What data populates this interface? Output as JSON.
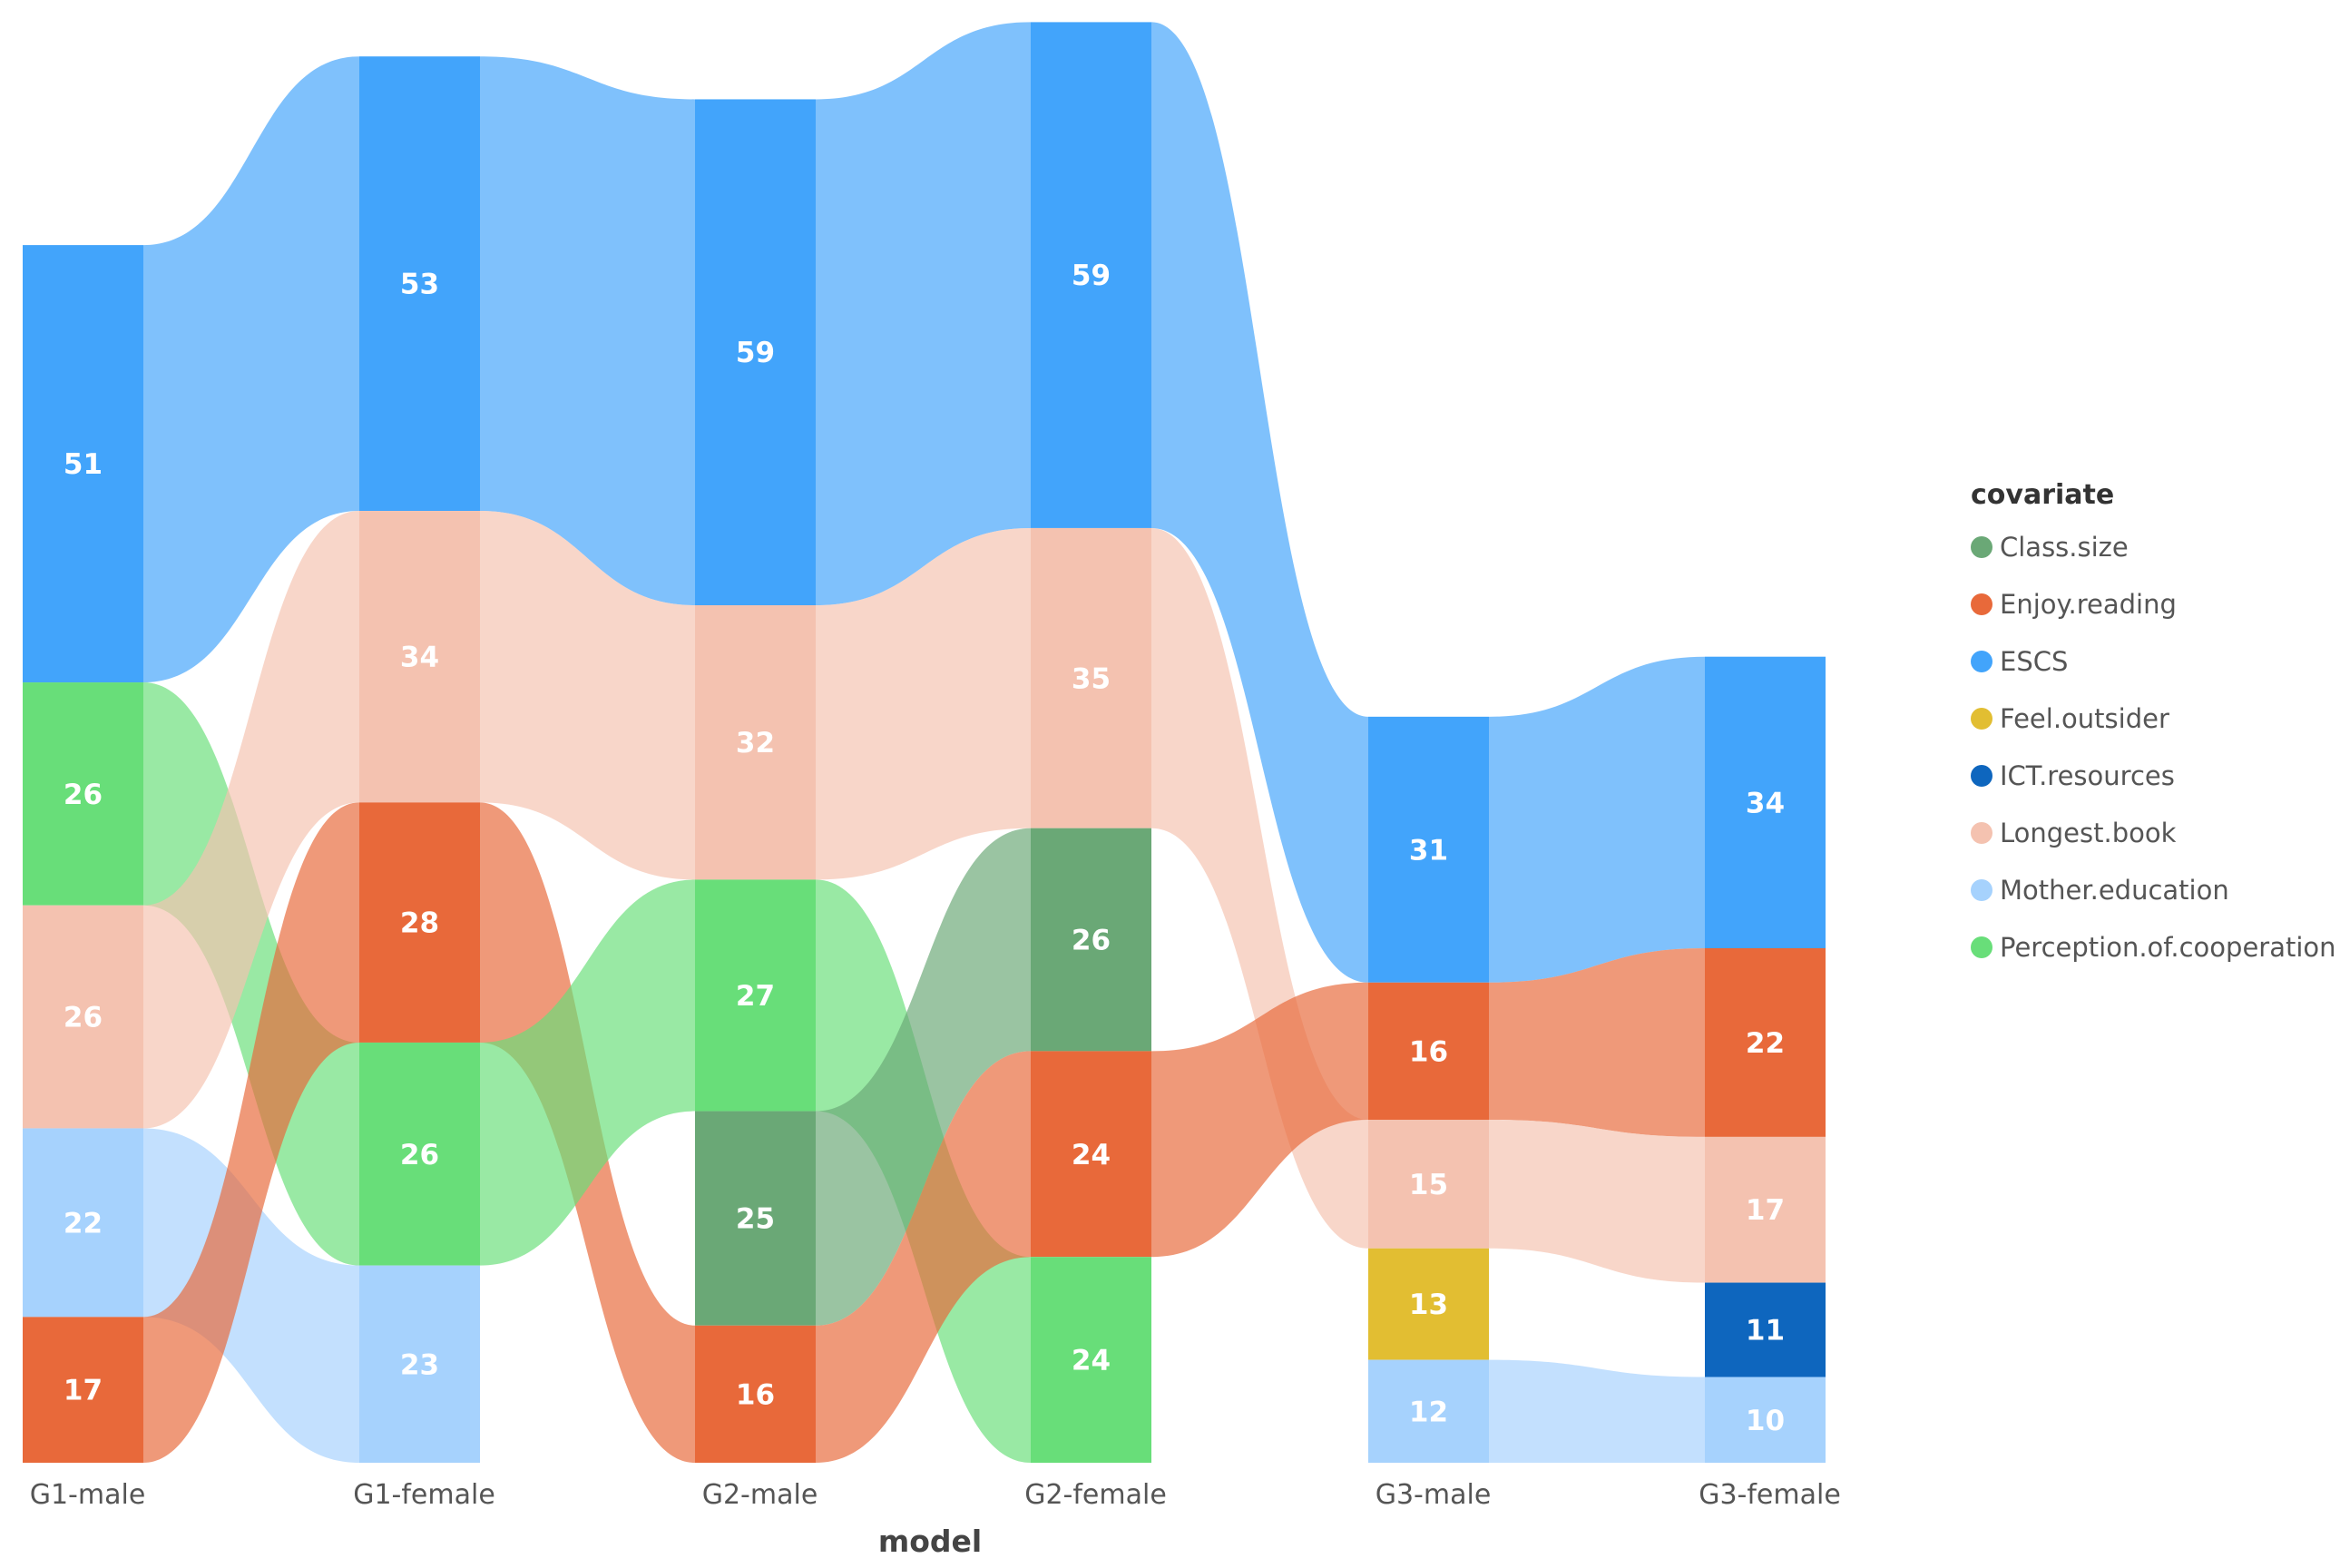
{
  "chart_data": {
    "type": "sankey",
    "xlabel": "model",
    "legend_title": "covariate",
    "legend_position": "right",
    "models": [
      "G1-male",
      "G1-female",
      "G2-male",
      "G2-female",
      "G3-male",
      "G3-female"
    ],
    "covariates": [
      {
        "name": "Class.size",
        "color": "#6aa876"
      },
      {
        "name": "Enjoy.reading",
        "color": "#e8693a"
      },
      {
        "name": "ESCS",
        "color": "#42a4fb"
      },
      {
        "name": "Feel.outsider",
        "color": "#e2be32"
      },
      {
        "name": "ICT.resources",
        "color": "#0e66be"
      },
      {
        "name": "Longest.book",
        "color": "#f4c2b0"
      },
      {
        "name": "Mother.education",
        "color": "#a6d2fd"
      },
      {
        "name": "Perception.of.cooperation",
        "color": "#68de79"
      }
    ],
    "columns": [
      {
        "model": "G1-male",
        "stack": [
          {
            "covariate": "ESCS",
            "value": 51
          },
          {
            "covariate": "Perception.of.cooperation",
            "value": 26
          },
          {
            "covariate": "Longest.book",
            "value": 26
          },
          {
            "covariate": "Mother.education",
            "value": 22
          },
          {
            "covariate": "Enjoy.reading",
            "value": 17
          }
        ]
      },
      {
        "model": "G1-female",
        "stack": [
          {
            "covariate": "ESCS",
            "value": 53
          },
          {
            "covariate": "Longest.book",
            "value": 34
          },
          {
            "covariate": "Enjoy.reading",
            "value": 28
          },
          {
            "covariate": "Perception.of.cooperation",
            "value": 26
          },
          {
            "covariate": "Mother.education",
            "value": 23
          }
        ]
      },
      {
        "model": "G2-male",
        "stack": [
          {
            "covariate": "ESCS",
            "value": 59
          },
          {
            "covariate": "Longest.book",
            "value": 32
          },
          {
            "covariate": "Perception.of.cooperation",
            "value": 27
          },
          {
            "covariate": "Class.size",
            "value": 25
          },
          {
            "covariate": "Enjoy.reading",
            "value": 16
          }
        ]
      },
      {
        "model": "G2-female",
        "stack": [
          {
            "covariate": "ESCS",
            "value": 59
          },
          {
            "covariate": "Longest.book",
            "value": 35
          },
          {
            "covariate": "Class.size",
            "value": 26
          },
          {
            "covariate": "Enjoy.reading",
            "value": 24
          },
          {
            "covariate": "Perception.of.cooperation",
            "value": 24
          }
        ]
      },
      {
        "model": "G3-male",
        "stack": [
          {
            "covariate": "ESCS",
            "value": 31
          },
          {
            "covariate": "Enjoy.reading",
            "value": 16
          },
          {
            "covariate": "Longest.book",
            "value": 15
          },
          {
            "covariate": "Feel.outsider",
            "value": 13
          },
          {
            "covariate": "Mother.education",
            "value": 12
          }
        ]
      },
      {
        "model": "G3-female",
        "stack": [
          {
            "covariate": "ESCS",
            "value": 34
          },
          {
            "covariate": "Enjoy.reading",
            "value": 22
          },
          {
            "covariate": "Longest.book",
            "value": 17
          },
          {
            "covariate": "ICT.resources",
            "value": 11
          },
          {
            "covariate": "Mother.education",
            "value": 10
          }
        ]
      }
    ]
  }
}
